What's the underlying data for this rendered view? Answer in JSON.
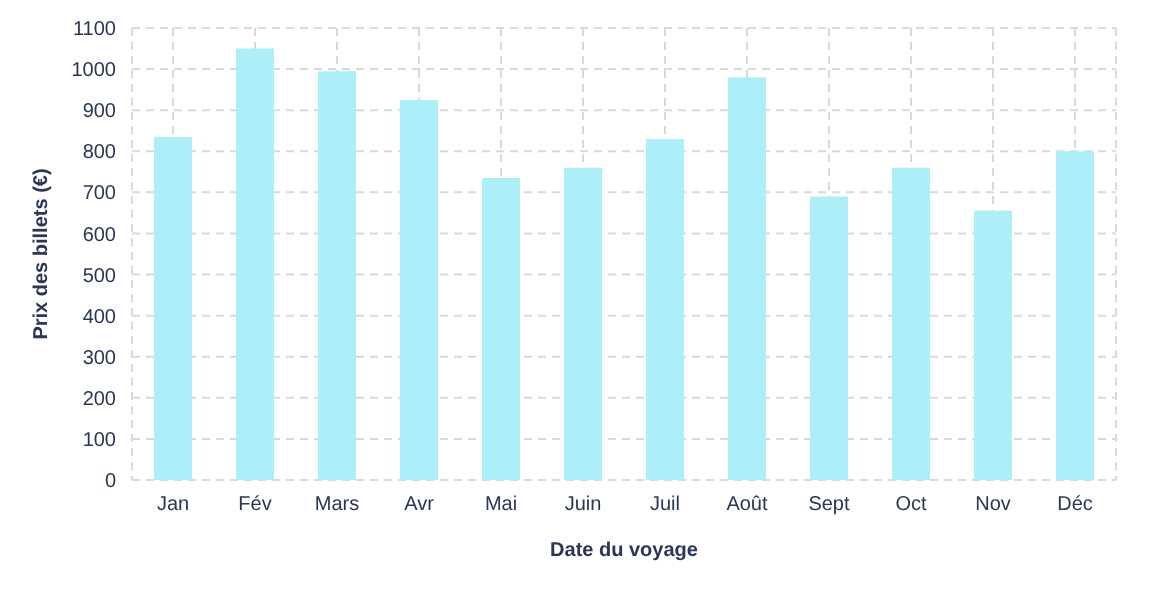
{
  "chart_data": {
    "type": "bar",
    "xlabel": "Date du voyage",
    "ylabel": "Prix des billets (€)",
    "categories": [
      "Jan",
      "Fév",
      "Mars",
      "Avr",
      "Mai",
      "Juin",
      "Juil",
      "Août",
      "Sept",
      "Oct",
      "Nov",
      "Déc"
    ],
    "values": [
      835,
      1050,
      995,
      925,
      735,
      760,
      830,
      980,
      690,
      760,
      655,
      800
    ],
    "color": "#aeeef8",
    "ylim": [
      0,
      1100
    ],
    "yticks": [
      0,
      100,
      200,
      300,
      400,
      500,
      600,
      700,
      800,
      900,
      1000,
      1100
    ],
    "grid": true
  }
}
